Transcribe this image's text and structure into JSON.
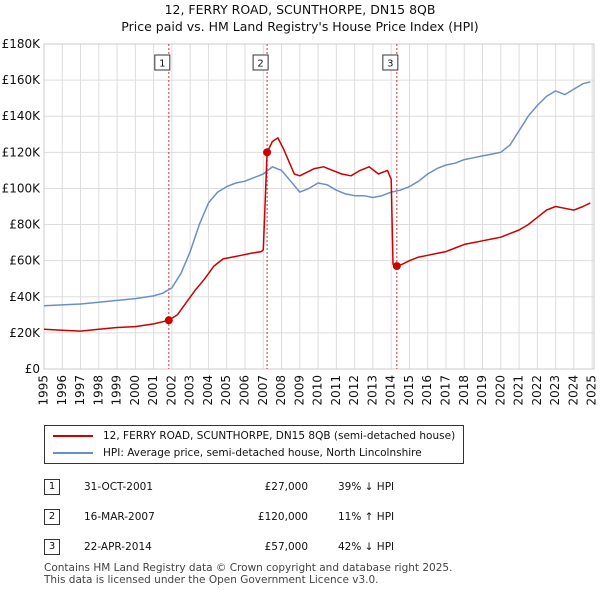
{
  "title_line1": "12, FERRY ROAD, SCUNTHORPE, DN15 8QB",
  "title_line2": "Price paid vs. HM Land Registry's House Price Index (HPI)",
  "colors": {
    "red": "#cc0000",
    "blue": "#6a8fc8",
    "grid": "#dddddd",
    "axis": "#333333"
  },
  "legend": [
    {
      "label": "12, FERRY ROAD, SCUNTHORPE, DN15 8QB (semi-detached house)",
      "color": "#cc0000"
    },
    {
      "label": "HPI: Average price, semi-detached house, North Lincolnshire",
      "color": "#6a8fc8"
    }
  ],
  "sales": [
    {
      "num": "1",
      "date": "31-OCT-2001",
      "price": "£27,000",
      "hpi": "39% ↓ HPI"
    },
    {
      "num": "2",
      "date": "16-MAR-2007",
      "price": "£120,000",
      "hpi": "11% ↑ HPI"
    },
    {
      "num": "3",
      "date": "22-APR-2014",
      "price": "£57,000",
      "hpi": "42% ↓ HPI"
    }
  ],
  "footer_line1": "Contains HM Land Registry data © Crown copyright and database right 2025.",
  "footer_line2": "This data is licensed under the Open Government Licence v3.0.",
  "chart_data": {
    "type": "line",
    "title": "12, FERRY ROAD, SCUNTHORPE, DN15 8QB",
    "subtitle": "Price paid vs. HM Land Registry's House Price Index (HPI)",
    "xlabel": "",
    "ylabel": "",
    "xlim": [
      1995,
      2025.1
    ],
    "ylim": [
      0,
      180000
    ],
    "y_ticks": [
      0,
      20000,
      40000,
      60000,
      80000,
      100000,
      120000,
      140000,
      160000,
      180000
    ],
    "y_tick_labels": [
      "£0",
      "£20K",
      "£40K",
      "£60K",
      "£80K",
      "£100K",
      "£120K",
      "£140K",
      "£160K",
      "£180K"
    ],
    "x_ticks": [
      1995,
      1996,
      1997,
      1998,
      1999,
      2000,
      2001,
      2002,
      2003,
      2004,
      2005,
      2006,
      2007,
      2008,
      2009,
      2010,
      2011,
      2012,
      2013,
      2014,
      2015,
      2016,
      2017,
      2018,
      2019,
      2020,
      2021,
      2022,
      2023,
      2024,
      2025
    ],
    "grid": true,
    "legend_position": "bottom",
    "series": [
      {
        "name": "12, FERRY ROAD, SCUNTHORPE, DN15 8QB (semi-detached house)",
        "color": "#cc0000",
        "x": [
          1995.0,
          1996.0,
          1997.0,
          1998.0,
          1999.0,
          2000.0,
          2001.0,
          2001.83,
          2002.3,
          2002.8,
          2003.3,
          2003.8,
          2004.3,
          2004.8,
          2005.3,
          2005.8,
          2006.3,
          2006.9,
          2007.0,
          2007.21,
          2007.5,
          2007.8,
          2008.1,
          2008.4,
          2008.7,
          2009.0,
          2009.4,
          2009.8,
          2010.3,
          2010.8,
          2011.3,
          2011.8,
          2012.3,
          2012.8,
          2013.3,
          2013.8,
          2014.0,
          2014.1,
          2014.31,
          2014.6,
          2015.0,
          2015.5,
          2016.0,
          2016.5,
          2017.0,
          2017.5,
          2018.0,
          2018.5,
          2019.0,
          2019.5,
          2020.0,
          2020.5,
          2021.0,
          2021.5,
          2022.0,
          2022.5,
          2023.0,
          2023.5,
          2024.0,
          2024.5,
          2024.9
        ],
        "y": [
          22000,
          21500,
          21000,
          22000,
          23000,
          23500,
          25000,
          27000,
          30000,
          37000,
          44000,
          50000,
          57000,
          61000,
          62000,
          63000,
          64000,
          65000,
          66000,
          120000,
          126000,
          128000,
          122000,
          115000,
          108000,
          107000,
          109000,
          111000,
          112000,
          110000,
          108000,
          107000,
          110000,
          112000,
          108000,
          110000,
          105000,
          58000,
          57000,
          58000,
          60000,
          62000,
          63000,
          64000,
          65000,
          67000,
          69000,
          70000,
          71000,
          72000,
          73000,
          75000,
          77000,
          80000,
          84000,
          88000,
          90000,
          89000,
          88000,
          90000,
          92000
        ]
      },
      {
        "name": "HPI: Average price, semi-detached house, North Lincolnshire",
        "color": "#6a8fc8",
        "x": [
          1995.0,
          1996.0,
          1997.0,
          1998.0,
          1999.0,
          2000.0,
          2001.0,
          2001.5,
          2002.0,
          2002.5,
          2003.0,
          2003.5,
          2004.0,
          2004.5,
          2005.0,
          2005.5,
          2006.0,
          2006.5,
          2007.0,
          2007.5,
          2008.0,
          2008.5,
          2009.0,
          2009.5,
          2010.0,
          2010.5,
          2011.0,
          2011.5,
          2012.0,
          2012.5,
          2013.0,
          2013.5,
          2014.0,
          2014.5,
          2015.0,
          2015.5,
          2016.0,
          2016.5,
          2017.0,
          2017.5,
          2018.0,
          2018.5,
          2019.0,
          2019.5,
          2020.0,
          2020.5,
          2021.0,
          2021.5,
          2022.0,
          2022.5,
          2023.0,
          2023.5,
          2024.0,
          2024.5,
          2024.9
        ],
        "y": [
          35000,
          35500,
          36000,
          37000,
          38000,
          39000,
          40500,
          42000,
          45000,
          53000,
          65000,
          80000,
          92000,
          98000,
          101000,
          103000,
          104000,
          106000,
          108000,
          112000,
          110000,
          104000,
          98000,
          100000,
          103000,
          102000,
          99000,
          97000,
          96000,
          96000,
          95000,
          96000,
          98000,
          99000,
          101000,
          104000,
          108000,
          111000,
          113000,
          114000,
          116000,
          117000,
          118000,
          119000,
          120000,
          124000,
          132000,
          140000,
          146000,
          151000,
          154000,
          152000,
          155000,
          158000,
          159000
        ]
      }
    ],
    "markers": [
      {
        "label": "1",
        "x": 2001.83,
        "y": 27000
      },
      {
        "label": "2",
        "x": 2007.21,
        "y": 120000
      },
      {
        "label": "3",
        "x": 2014.31,
        "y": 57000
      }
    ]
  }
}
